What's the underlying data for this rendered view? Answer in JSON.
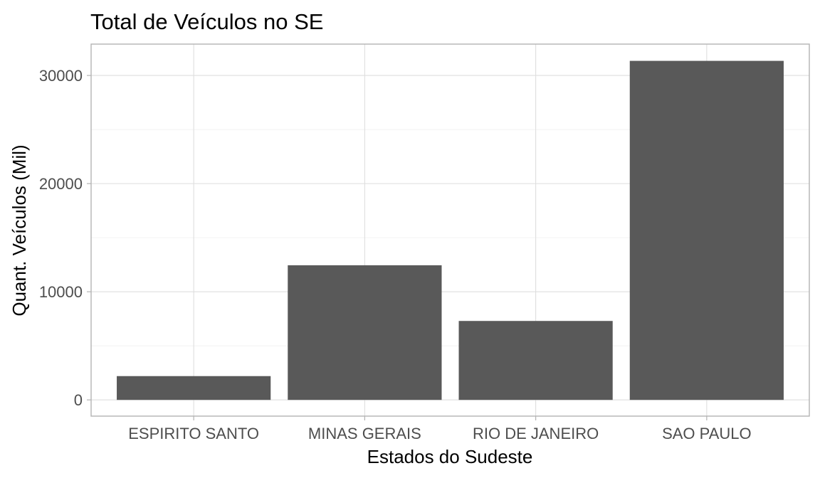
{
  "chart_data": {
    "type": "bar",
    "title": "Total de Veículos no SE",
    "xlabel": "Estados do Sudeste",
    "ylabel": "Quant. Veículos (Mil)",
    "categories": [
      "ESPIRITO SANTO",
      "MINAS GERAIS",
      "RIO DE JANEIRO",
      "SAO PAULO"
    ],
    "values": [
      2200,
      12450,
      7300,
      31350
    ],
    "ylim": [
      -1500,
      32900
    ],
    "yticks": [
      0,
      10000,
      20000,
      30000
    ],
    "ytick_labels": [
      "0",
      "10000",
      "20000",
      "30000"
    ],
    "grid": true,
    "bar_color": "#595959",
    "legend": "none"
  }
}
